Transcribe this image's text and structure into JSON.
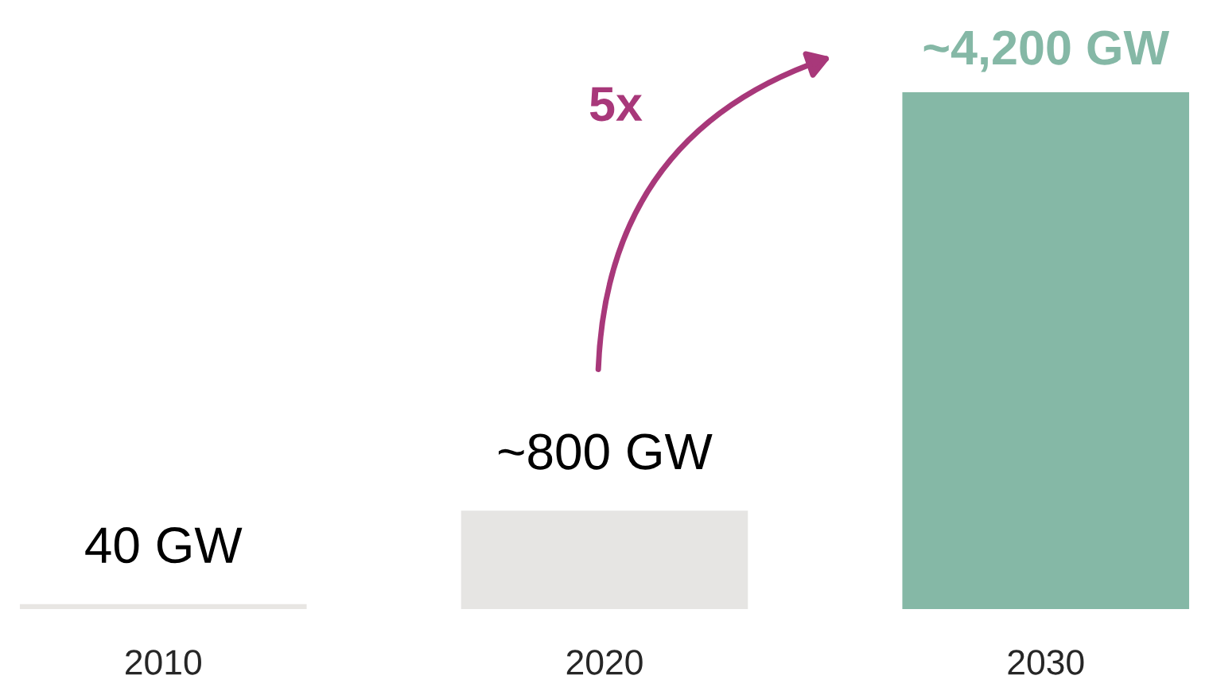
{
  "chart_data": {
    "type": "bar",
    "categories": [
      "2010",
      "2020",
      "2030"
    ],
    "values": [
      40,
      800,
      4200
    ],
    "colors": [
      "#e8e6e3",
      "#e6e5e3",
      "#85b8a6"
    ],
    "value_labels": [
      "40 GW",
      "~800 GW",
      "~4,200 GW"
    ],
    "annotations": [
      "5x"
    ]
  }
}
